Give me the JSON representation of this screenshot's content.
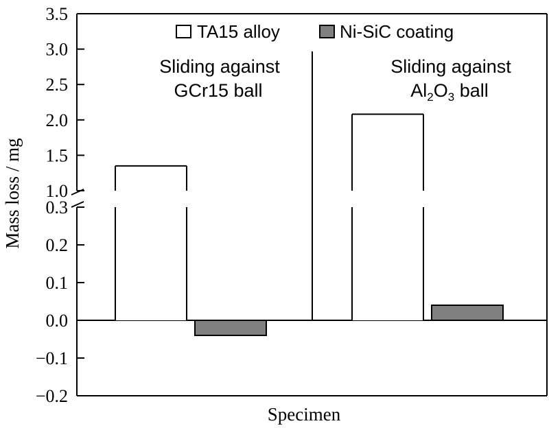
{
  "chart_data": {
    "type": "bar",
    "ylabel": "Mass loss / mg",
    "xlabel": "Specimen",
    "y_axis_break": {
      "lower_max": 0.3,
      "upper_min": 1.0
    },
    "ylim_lower": [
      -0.2,
      0.3
    ],
    "ylim_upper": [
      1.0,
      3.5
    ],
    "y_ticks_lower": [
      "-0.2",
      "-0.1",
      "0.0",
      "0.1",
      "0.2",
      "0.3"
    ],
    "y_ticks_upper": [
      "1.0",
      "1.5",
      "2.0",
      "2.5",
      "3.0",
      "3.5"
    ],
    "groups": [
      {
        "label_line1": "Sliding against",
        "label_line2": "GCr15 ball"
      },
      {
        "label_line1": "Sliding against",
        "label_line2_parts": [
          "Al",
          "2",
          "O",
          "3",
          " ball"
        ]
      }
    ],
    "series": [
      {
        "name": "TA15 alloy",
        "color": "#ffffff",
        "values": [
          1.35,
          2.08
        ]
      },
      {
        "name": "Ni-SiC coating",
        "color": "#808080",
        "values": [
          -0.04,
          0.04
        ]
      }
    ],
    "legend_position": "top-right"
  }
}
